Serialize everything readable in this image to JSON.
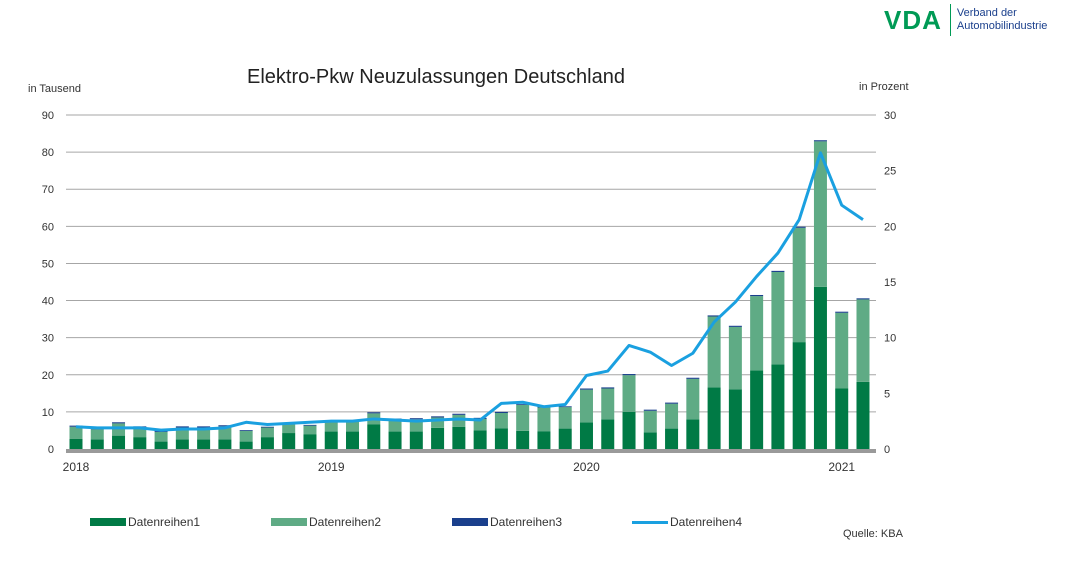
{
  "logo": {
    "mark": "VDA",
    "line1": "Verband der",
    "line2": "Automobilindustrie"
  },
  "source": "Quelle: KBA",
  "colors": {
    "s1": "#007a45",
    "s2": "#5fab85",
    "s3": "#1a3f8c",
    "s4": "#1aa0e0"
  },
  "chart_data": {
    "type": "bar",
    "title": "Elektro-Pkw Neuzulassungen Deutschland",
    "ylabel": "in Tausend",
    "y2label": "in Prozent",
    "ylim": [
      0,
      90
    ],
    "y2lim": [
      0,
      30
    ],
    "yticks": [
      "0",
      "10",
      "20",
      "30",
      "40",
      "50",
      "60",
      "70",
      "80",
      "90"
    ],
    "y2ticks": [
      "0",
      "5",
      "10",
      "15",
      "20",
      "25",
      "30"
    ],
    "xtick_labels": [
      {
        "index": 0,
        "label": "2018"
      },
      {
        "index": 12,
        "label": "2019"
      },
      {
        "index": 24,
        "label": "2020"
      },
      {
        "index": 36,
        "label": "2021"
      }
    ],
    "categories": [
      "2018-01",
      "2018-02",
      "2018-03",
      "2018-04",
      "2018-05",
      "2018-06",
      "2018-07",
      "2018-08",
      "2018-09",
      "2018-10",
      "2018-11",
      "2018-12",
      "2019-01",
      "2019-02",
      "2019-03",
      "2019-04",
      "2019-05",
      "2019-06",
      "2019-07",
      "2019-08",
      "2019-09",
      "2019-10",
      "2019-11",
      "2019-12",
      "2020-01",
      "2020-02",
      "2020-03",
      "2020-04",
      "2020-05",
      "2020-06",
      "2020-07",
      "2020-08",
      "2020-09",
      "2020-10",
      "2020-11",
      "2020-12",
      "2021-01",
      "2021-02"
    ],
    "series": [
      {
        "name": "Datenreihen1",
        "type": "bar",
        "axis": "left",
        "values": [
          2.7,
          2.6,
          3.6,
          3.2,
          2.0,
          2.6,
          2.6,
          2.6,
          2.0,
          3.2,
          4.3,
          4.0,
          4.7,
          4.7,
          6.6,
          4.7,
          4.7,
          5.7,
          6.0,
          5.0,
          5.6,
          4.9,
          4.8,
          5.5,
          7.2,
          8.0,
          10.0,
          4.5,
          5.5,
          8.0,
          16.6,
          16.1,
          21.2,
          22.8,
          28.8,
          43.7,
          16.3,
          18.1
        ]
      },
      {
        "name": "Datenreihen2",
        "type": "bar",
        "axis": "left",
        "values": [
          3.3,
          2.7,
          3.3,
          2.6,
          2.6,
          3.2,
          3.2,
          3.5,
          2.9,
          2.6,
          2.6,
          2.3,
          2.6,
          2.8,
          3.0,
          3.2,
          3.3,
          2.8,
          3.2,
          3.1,
          4.1,
          7.0,
          6.4,
          5.8,
          8.8,
          8.3,
          9.9,
          5.8,
          6.7,
          10.9,
          19.1,
          16.8,
          20.0,
          24.9,
          30.8,
          39.2,
          20.4,
          22.2
        ]
      },
      {
        "name": "Datenreihen3",
        "type": "bar",
        "axis": "left",
        "values": [
          0.3,
          0.3,
          0.3,
          0.3,
          0.3,
          0.3,
          0.3,
          0.3,
          0.2,
          0.2,
          0.2,
          0.2,
          0.2,
          0.2,
          0.3,
          0.3,
          0.3,
          0.3,
          0.3,
          0.3,
          0.3,
          0.2,
          0.2,
          0.2,
          0.3,
          0.3,
          0.3,
          0.3,
          0.3,
          0.3,
          0.3,
          0.3,
          0.3,
          0.3,
          0.3,
          0.3,
          0.3,
          0.3
        ]
      },
      {
        "name": "Datenreihen4",
        "type": "line",
        "axis": "right",
        "values": [
          2.0,
          1.9,
          1.9,
          1.9,
          1.7,
          1.8,
          1.8,
          1.9,
          2.4,
          2.2,
          2.3,
          2.4,
          2.5,
          2.5,
          2.7,
          2.6,
          2.5,
          2.6,
          2.7,
          2.6,
          4.1,
          4.2,
          3.8,
          4.0,
          6.6,
          7.0,
          9.3,
          8.7,
          7.5,
          8.6,
          11.4,
          13.2,
          15.5,
          17.6,
          20.6,
          26.6,
          21.9,
          20.6
        ]
      }
    ],
    "grid": true,
    "legend": "bottom"
  }
}
